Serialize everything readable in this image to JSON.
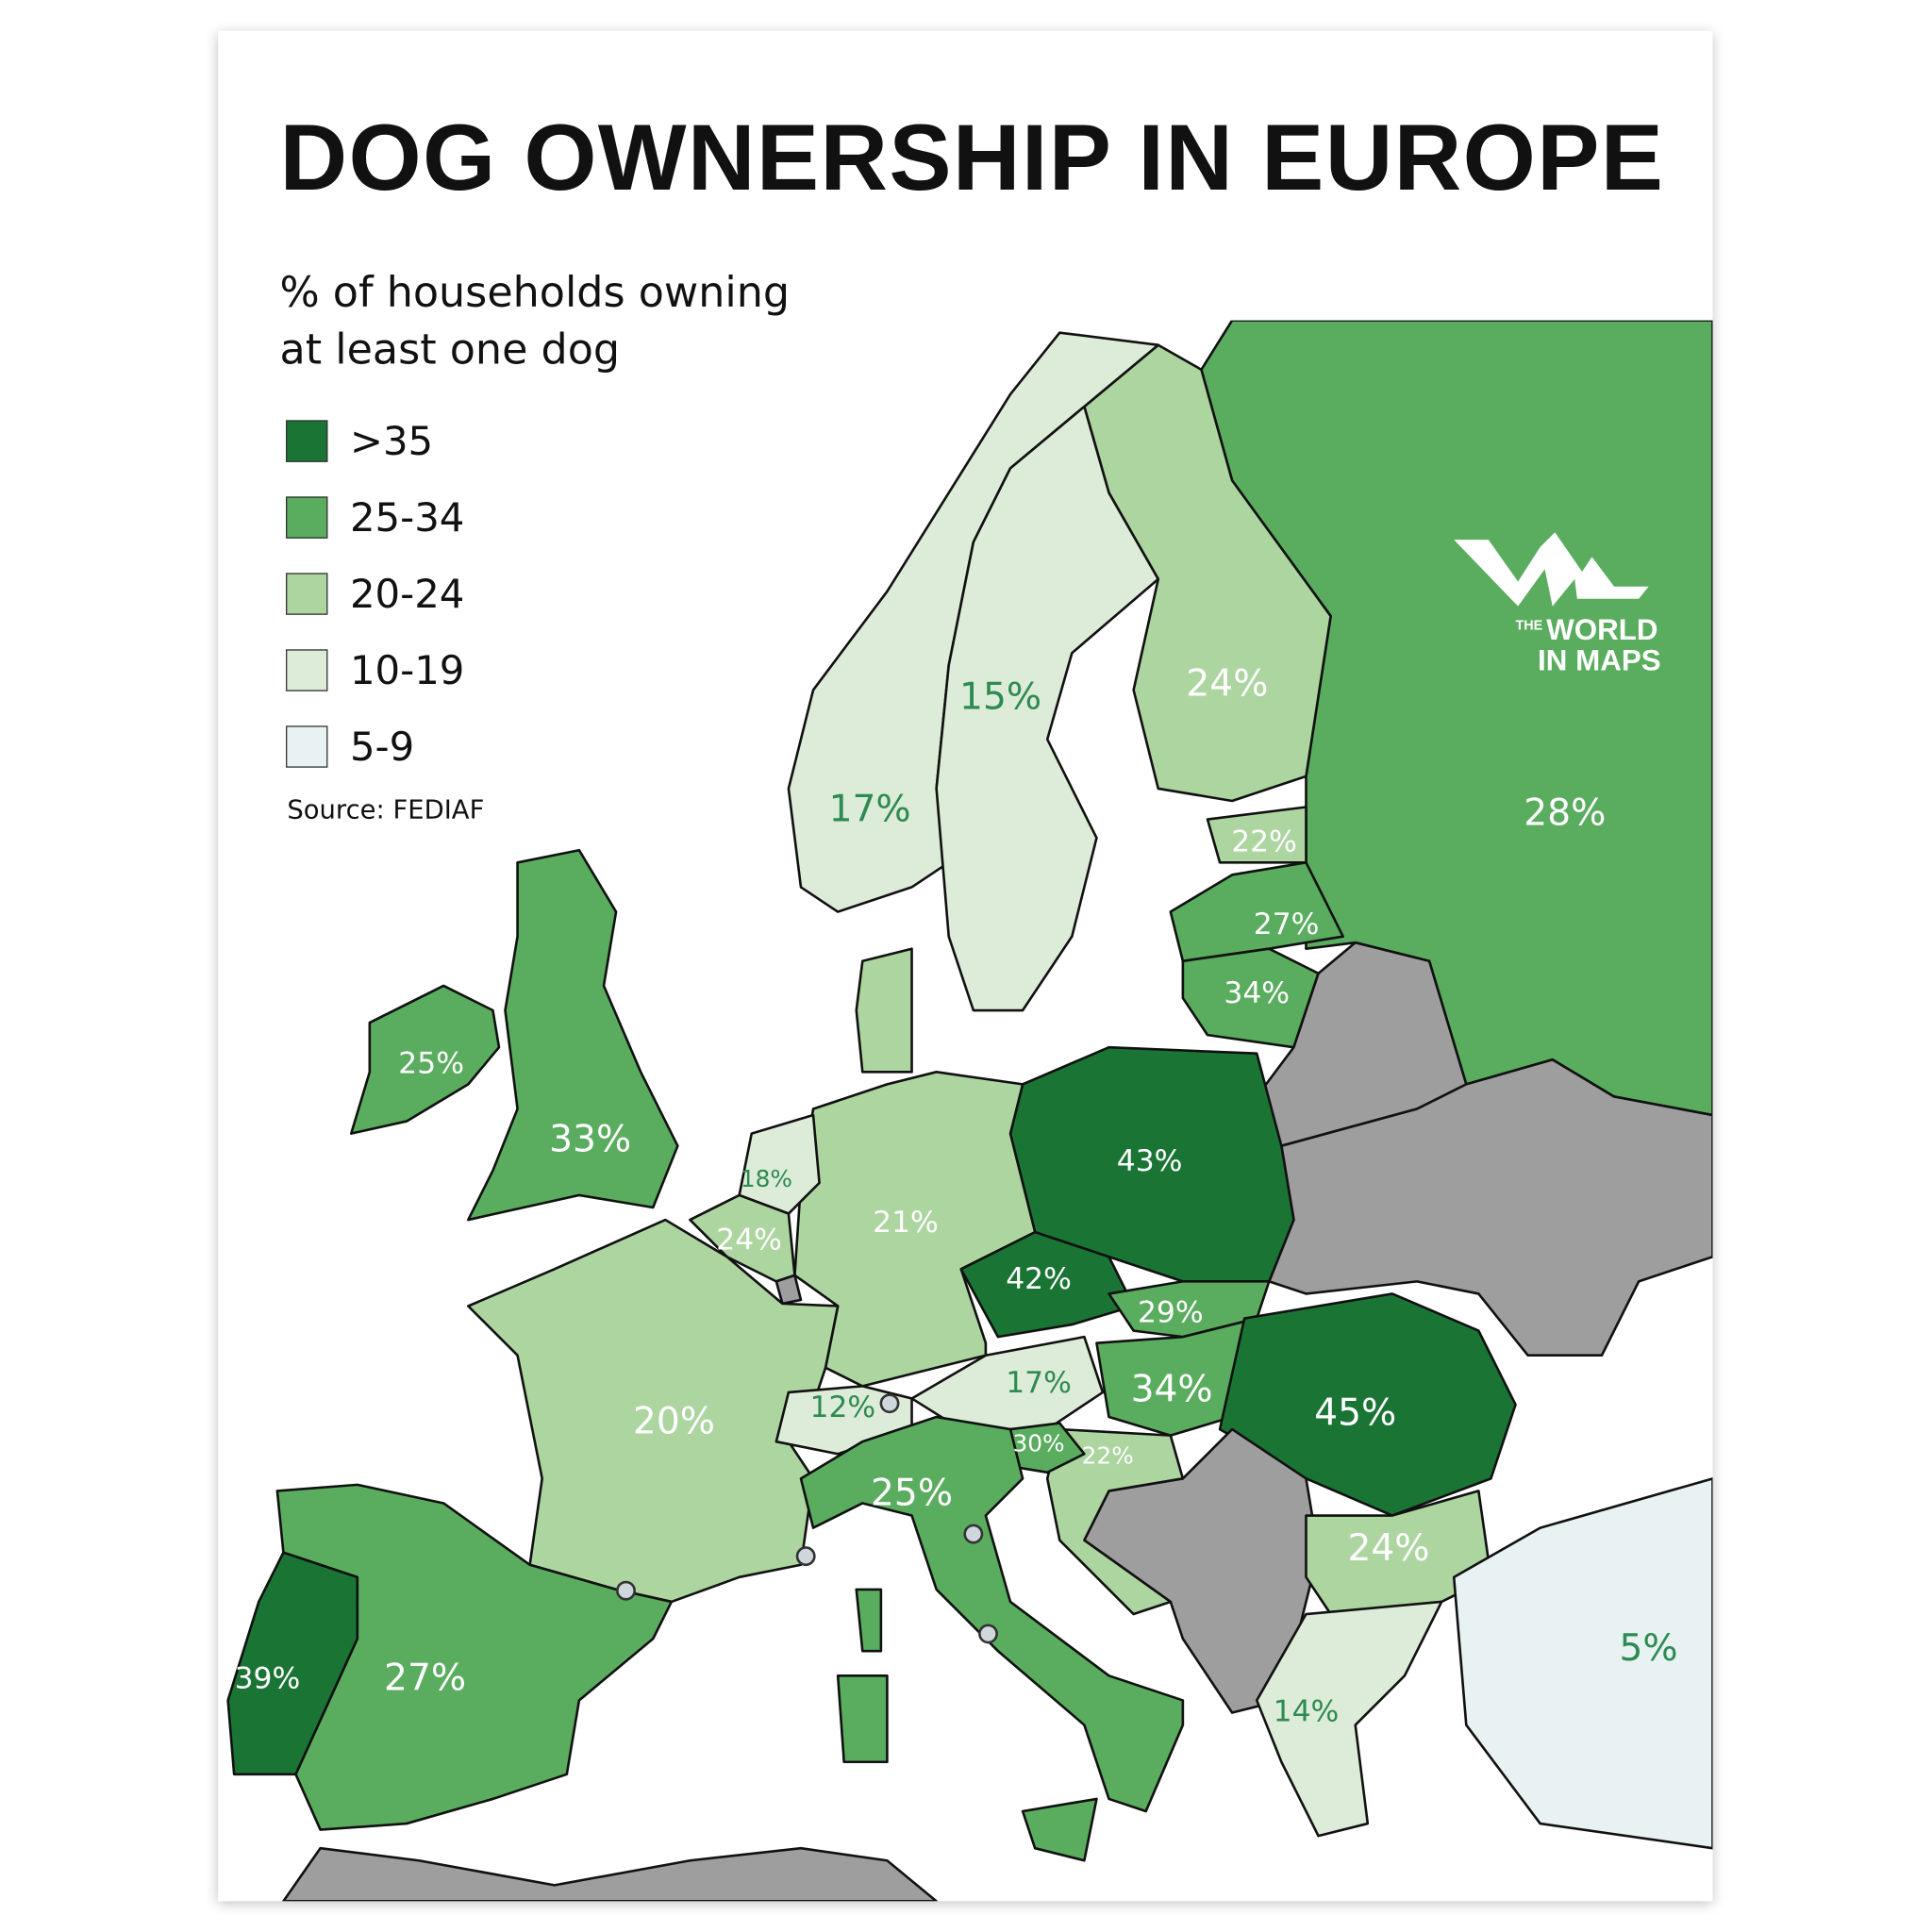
{
  "title": "DOG OWNERSHIP IN EUROPE",
  "subtitle": "% of households owning at least one dog",
  "legend": [
    {
      "label": ">35",
      "color": "#1a7535"
    },
    {
      "label": "25-34",
      "color": "#5aad5f"
    },
    {
      "label": "20-24",
      "color": "#acd5a0"
    },
    {
      "label": "10-19",
      "color": "#ddecd8"
    },
    {
      "label": "5-9",
      "color": "#e8f2f2"
    }
  ],
  "no_data_color": "#9e9e9e",
  "source": "Source: FEDIAF",
  "logo": {
    "the": "THE",
    "line1": "WORLD",
    "line2": "IN MAPS"
  },
  "values": {
    "russia": "28%",
    "finland": "24%",
    "sweden": "15%",
    "norway": "17%",
    "estonia": "22%",
    "latvia": "27%",
    "lithuania": "34%",
    "poland": "43%",
    "germany": "21%",
    "netherlands": "18%",
    "belgium": "24%",
    "france": "20%",
    "switzerland": "12%",
    "austria": "17%",
    "czechia": "42%",
    "slovakia": "29%",
    "hungary": "34%",
    "romania": "45%",
    "slovenia": "30%",
    "croatia": "22%",
    "bulgaria": "24%",
    "greece": "14%",
    "turkey": "5%",
    "italy": "25%",
    "spain": "27%",
    "portugal": "39%",
    "uk": "33%",
    "ireland": "25%"
  }
}
